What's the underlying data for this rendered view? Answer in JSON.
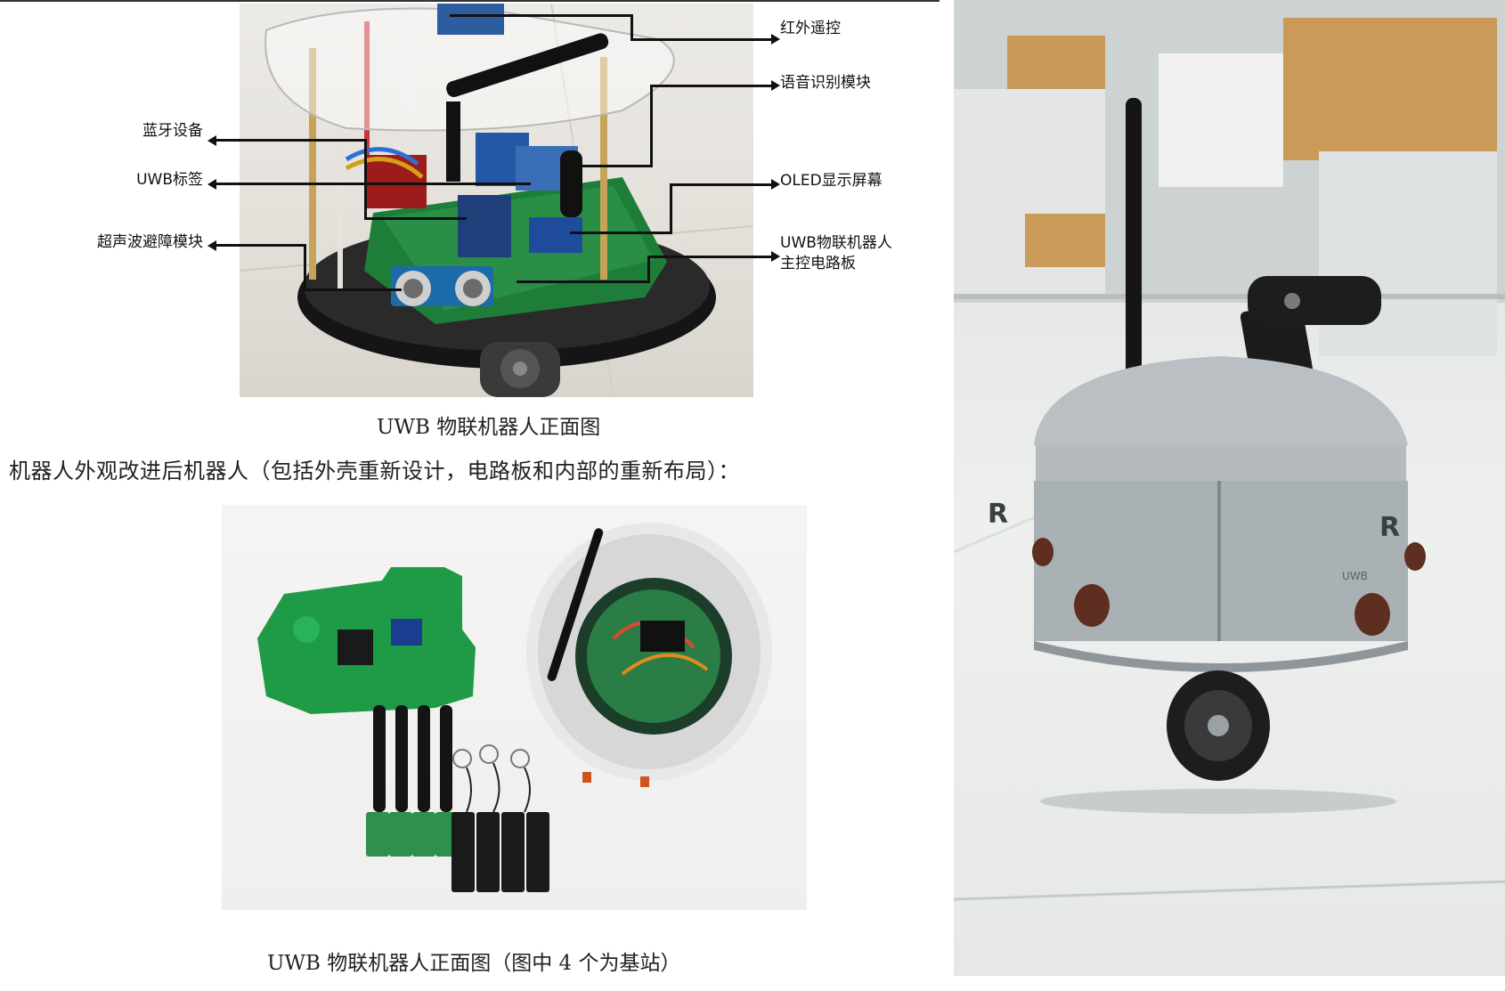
{
  "figure_top": {
    "callouts_right": [
      {
        "label": "红外遥控"
      },
      {
        "label": "语音识别模块"
      },
      {
        "label": "OLED显示屏幕"
      },
      {
        "label_line1": "UWB物联机器人",
        "label_line2": "主控电路板"
      }
    ],
    "callouts_left": [
      {
        "label": "蓝牙设备"
      },
      {
        "label": "UWB标签"
      },
      {
        "label": "超声波避障模块"
      }
    ],
    "caption": "UWB 物联机器人正面图"
  },
  "body_text": "机器人外观改进后机器人（包括外壳重新设计，电路板和内部的重新布局）：",
  "figure_bottom": {
    "caption": "UWB 物联机器人正面图（图中 4 个为基站）"
  },
  "robot_photo": {
    "marking_left": "R",
    "marking_right": "R",
    "side_text": "UWB"
  }
}
